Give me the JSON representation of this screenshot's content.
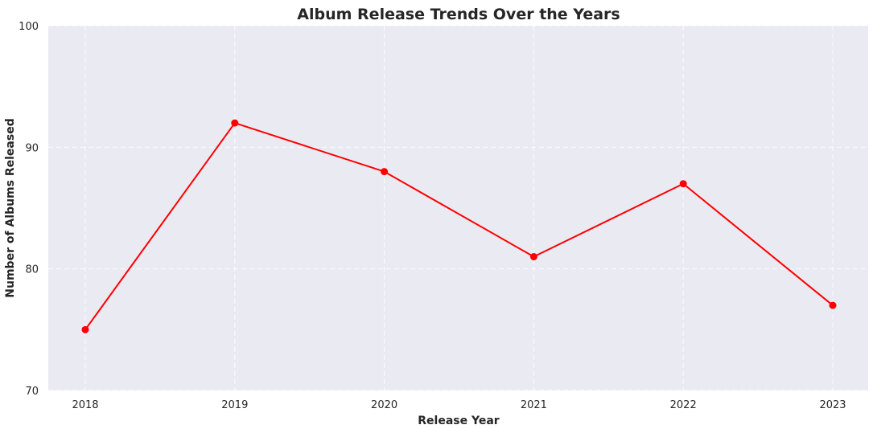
{
  "chart_data": {
    "type": "line",
    "title": "Album Release Trends Over the Years",
    "xlabel": "Release Year",
    "ylabel": "Number of Albums Released",
    "categories": [
      "2018",
      "2019",
      "2020",
      "2021",
      "2022",
      "2023"
    ],
    "series": [
      {
        "values": [
          75,
          92,
          88,
          81,
          87,
          77
        ],
        "color": "#ff0000"
      }
    ],
    "ylim": [
      70,
      100
    ],
    "yticks": [
      70,
      80,
      90,
      100
    ],
    "grid": true,
    "background_color": "#eaeaf2"
  }
}
